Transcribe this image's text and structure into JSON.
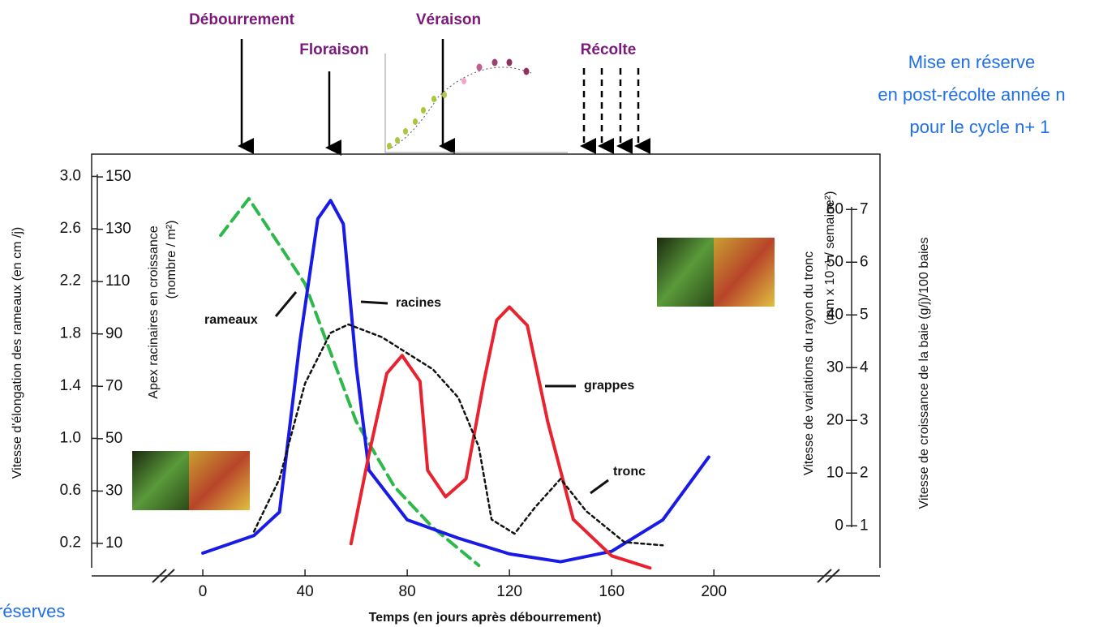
{
  "chart_data": {
    "type": "line",
    "stages": [
      "Débourrement",
      "Floraison",
      "Véraison",
      "Récolte"
    ],
    "notes": [
      "Mise en réserve",
      "en post-récolte année n",
      "pour le cycle n+ 1",
      "réserves"
    ],
    "xlabel": "Temps (en jours après débourrement)",
    "ylabel": "Vitesse d'élongation des rameaux (en cm /j)",
    "y2label": [
      "Apex racinaires en croissance",
      "(nombre / m²)"
    ],
    "y3label": [
      "Vitesse de variations du rayon du tronc",
      "(mm x 10⁻¹ / semaine²)"
    ],
    "y4label": "Vitesse de croissance de la baie (g/j)/100 baies",
    "xlim": [
      -43.5,
      265
    ],
    "xticks": [
      0,
      40,
      80,
      120,
      160,
      200
    ],
    "ylim": [
      -0.05,
      3.17
    ],
    "yticks": [
      0.2,
      0.6,
      {
        "value": 1.0,
        "label": "1.0"
      },
      1.4,
      1.8,
      2.2,
      2.6,
      {
        "value": 3.0,
        "label": "3.0"
      }
    ],
    "y2lim": [
      -2.4,
      158.7
    ],
    "y2ticks": [
      10,
      30,
      50,
      70,
      90,
      110,
      130,
      150
    ],
    "y3lim": [
      -9.5,
      70.5
    ],
    "y3ticks": [
      0,
      10,
      20,
      30,
      40,
      50,
      60
    ],
    "y4lim": [
      0.05,
      8.05
    ],
    "y4ticks": [
      1,
      2,
      3,
      4,
      5,
      6,
      7
    ],
    "series": [
      {
        "name": "rameaux",
        "color": "#2db84a",
        "axis": "y",
        "style": "dashed",
        "x": [
          7,
          18,
          40,
          60,
          75,
          90,
          108
        ],
        "values": [
          2.55,
          2.83,
          2.18,
          1.13,
          0.63,
          0.32,
          0.03
        ]
      },
      {
        "name": "racines",
        "color": "#1a1ae6",
        "axis": "y2",
        "style": "solid",
        "x": [
          0,
          20,
          30,
          38,
          45,
          50,
          55,
          60,
          65,
          80,
          100,
          120,
          140,
          160,
          180,
          198
        ],
        "values": [
          6.3,
          13,
          22,
          87,
          134,
          141,
          132,
          78,
          38,
          19,
          12,
          6,
          3,
          7,
          19,
          43
        ]
      },
      {
        "name": "grappes",
        "color": "#e8232f",
        "axis": "y4",
        "style": "solid",
        "x": [
          58,
          65,
          72,
          78,
          85,
          88,
          95,
          103,
          110,
          115,
          120,
          127,
          135,
          145,
          160,
          175
        ],
        "values": [
          0.66,
          2.35,
          3.89,
          4.23,
          3.74,
          2.05,
          1.55,
          1.89,
          3.74,
          4.9,
          5.15,
          4.8,
          2.97,
          1.12,
          0.43,
          0.2
        ]
      },
      {
        "name": "tronc",
        "color": "#111111",
        "axis": "y3",
        "style": "dotted",
        "x": [
          20,
          30,
          40,
          50,
          57,
          70,
          90,
          100,
          108,
          113,
          122,
          130,
          140,
          150,
          165,
          180
        ],
        "values": [
          -1.1,
          8.9,
          27,
          36.6,
          38.2,
          35.8,
          29.7,
          24.3,
          15,
          1.2,
          -1.5,
          3.5,
          8.9,
          2.8,
          -3.1,
          -3.7
        ]
      }
    ]
  }
}
